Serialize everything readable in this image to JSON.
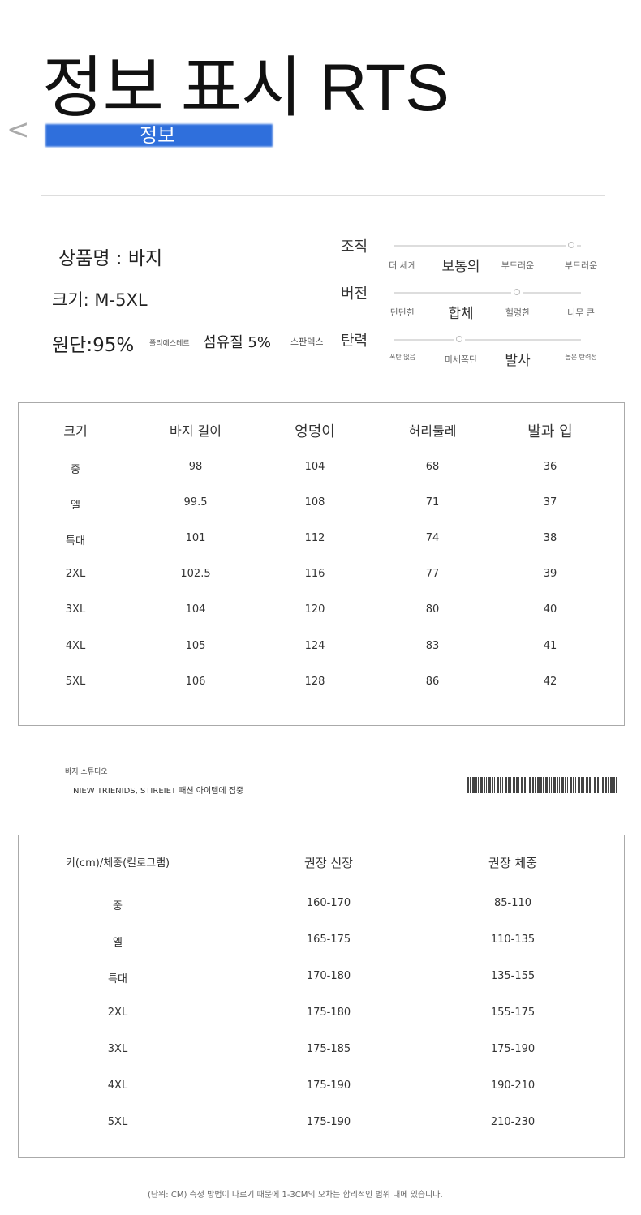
{
  "header": {
    "title": "정보 표시 RTS",
    "subtitle": "정보",
    "back_icon": "chevron-left-icon"
  },
  "product": {
    "name": "상품명 : 바지",
    "size": "크기: M-5XL",
    "fabric_main": "원단:95%",
    "fabric_poly": "폴리에스테르",
    "fabric_fiber": "섬유질 5%",
    "fabric_spandex": "스판덱스"
  },
  "attributes": [
    {
      "label": "조직",
      "options": [
        "더 세게",
        "보통의",
        "부드러운",
        "부드러운"
      ],
      "selected": 1,
      "level": 0.95
    },
    {
      "label": "버전",
      "options": [
        "단단한",
        "합체",
        "헐렁한",
        "너무 큰"
      ],
      "selected": 1,
      "level": 0.66
    },
    {
      "label": "탄력",
      "options": [
        "폭탄 없음",
        "미세폭탄",
        "발사",
        "높은 탄력성"
      ],
      "selected": 2,
      "level": 0.35
    }
  ],
  "size_table": {
    "headers": [
      "크기",
      "바지 길이",
      "엉덩이",
      "허리둘레",
      "발과 입"
    ],
    "rows": [
      [
        "중",
        "98",
        "104",
        "68",
        "36"
      ],
      [
        "엘",
        "99.5",
        "108",
        "71",
        "37"
      ],
      [
        "특대",
        "101",
        "112",
        "74",
        "38"
      ],
      [
        "2XL",
        "102.5",
        "116",
        "77",
        "39"
      ],
      [
        "3XL",
        "104",
        "120",
        "80",
        "40"
      ],
      [
        "4XL",
        "105",
        "124",
        "83",
        "41"
      ],
      [
        "5XL",
        "106",
        "128",
        "86",
        "42"
      ]
    ]
  },
  "brand": {
    "name": "바지 스튜디오",
    "tagline": "NIEW TRIENIDS, STIREIET 패션 아이템에 집중"
  },
  "fit_table": {
    "headers": [
      "키(cm)/체중(킬로그램)",
      "권장 신장",
      "권장 체중"
    ],
    "rows": [
      [
        "중",
        "160-170",
        "85-110"
      ],
      [
        "엘",
        "165-175",
        "110-135"
      ],
      [
        "특대",
        "170-180",
        "135-155"
      ],
      [
        "2XL",
        "175-180",
        "155-175"
      ],
      [
        "3XL",
        "175-185",
        "175-190"
      ],
      [
        "4XL",
        "175-190",
        "190-210"
      ],
      [
        "5XL",
        "175-190",
        "210-230"
      ]
    ]
  },
  "footnote": "(단위: CM) 측정 방법이 다르기 때문에 1-3CM의 오차는 합리적인 범위 내에 있습니다."
}
